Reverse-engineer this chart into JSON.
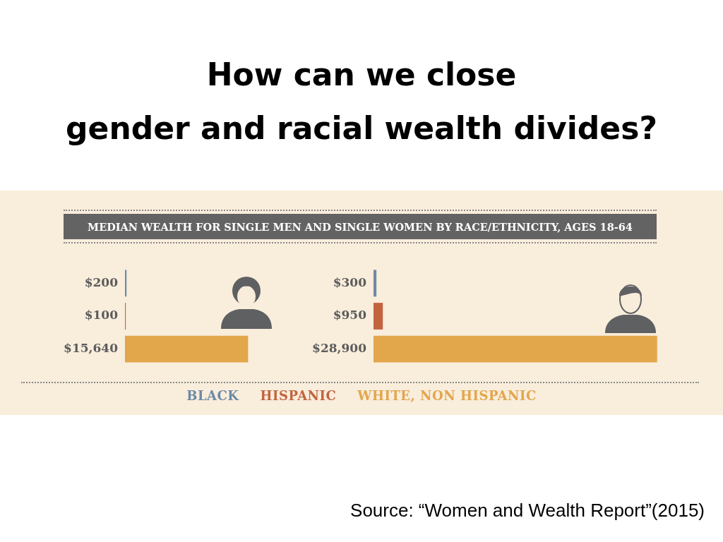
{
  "chart_data": [
    {
      "type": "bar",
      "orientation": "horizontal",
      "title": "How can we close\ngender and racial wealth divides?",
      "subtitle": "MEDIAN WEALTH FOR SINGLE MEN AND SINGLE WOMEN BY RACE/ETHNICITY, AGES 18-64",
      "categories": [
        null
      ],
      "tick_labels": false,
      "series": [
        {
          "color": "#6e8aa6",
          "values": [
            200
          ],
          "value_labels": [
            "$200"
          ]
        },
        {
          "color": "#c2643f",
          "values": [
            100
          ],
          "value_labels": [
            "$100"
          ]
        },
        {
          "color": "#e2a64b",
          "values": [
            15640
          ],
          "value_labels": [
            "$15,640"
          ]
        }
      ],
      "annotations": [
        "Source: “Women and Wealth Report”(2015)"
      ]
    },
    {
      "type": "bar",
      "orientation": "horizontal",
      "categories": [
        null
      ],
      "tick_labels": false,
      "legend": "bottom",
      "series": [
        {
          "name": "BLACK",
          "color": "#6e8aa6",
          "values": [
            300
          ],
          "value_labels": [
            "$300"
          ]
        },
        {
          "name": "HISPANIC",
          "color": "#c2643f",
          "values": [
            950
          ],
          "value_labels": [
            "$950"
          ]
        },
        {
          "name": "WHITE, NON HISPANIC",
          "color": "#e2a64b",
          "values": [
            28900
          ],
          "value_labels": [
            "$28,900"
          ]
        }
      ]
    }
  ]
}
